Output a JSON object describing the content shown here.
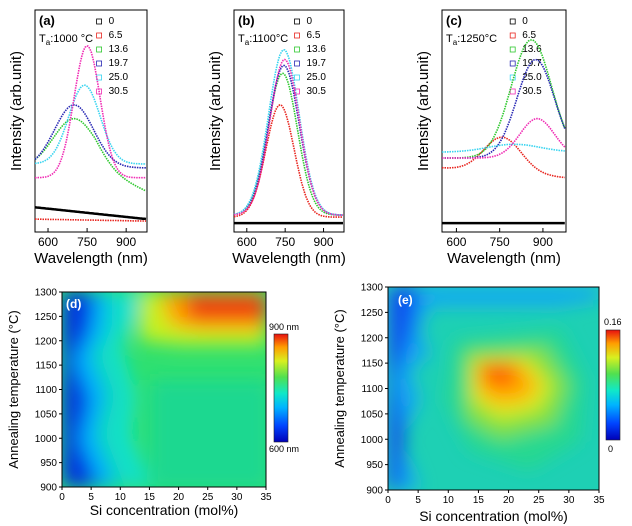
{
  "figure": {
    "panels_top": [
      {
        "letter": "(a)",
        "temp_prefix": "T",
        "temp_sub": "a",
        "temp_value": ":1000 °C"
      },
      {
        "letter": "(b)",
        "temp_prefix": "T",
        "temp_sub": "a",
        "temp_value": ":1100°C"
      },
      {
        "letter": "(c)",
        "temp_prefix": "T",
        "temp_sub": "a",
        "temp_value": ":1250°C"
      }
    ],
    "legend_values": [
      "0",
      "6.5",
      "13.6",
      "19.7",
      "25.0",
      "30.5"
    ],
    "legend_colors": [
      "#000000",
      "#e8251f",
      "#2ec82e",
      "#2828b4",
      "#38d4f0",
      "#f02cb4"
    ],
    "top_xlabel": "Wavelength (nm)",
    "top_ylabel": "Intensity (arb.unit)",
    "top_xticks": [
      "600",
      "750",
      "900"
    ],
    "map_d": {
      "letter": "(d)",
      "cbar_top": "900 nm",
      "cbar_bottom": "600 nm"
    },
    "map_e": {
      "letter": "(e)",
      "cbar_top": "0.16",
      "cbar_bottom": "0"
    },
    "map_xlabel": "Si concentration (mol%)",
    "map_ylabel": "Annealing temperature (°C)",
    "map_xticks": [
      "0",
      "5",
      "10",
      "15",
      "20",
      "25",
      "30",
      "35"
    ],
    "map_yticks": [
      "1300",
      "1250",
      "1200",
      "1150",
      "1100",
      "1050",
      "1000",
      "950",
      "900"
    ]
  },
  "chart_data": [
    {
      "type": "line",
      "panel": "(a)",
      "x_range": [
        550,
        980
      ],
      "series": [
        {
          "name": "0",
          "peak_nm": null,
          "relative_peak": 0.05
        },
        {
          "name": "6.5",
          "peak_nm": null,
          "relative_peak": 0.09
        },
        {
          "name": "13.6",
          "peak_nm": 700,
          "relative_peak": 0.55
        },
        {
          "name": "19.7",
          "peak_nm": 700,
          "relative_peak": 0.62
        },
        {
          "name": "25.0",
          "peak_nm": 740,
          "relative_peak": 0.72
        },
        {
          "name": "30.5",
          "peak_nm": 750,
          "relative_peak": 0.92
        }
      ]
    },
    {
      "type": "line",
      "panel": "(b)",
      "x_range": [
        550,
        980
      ],
      "series": [
        {
          "name": "0",
          "peak_nm": null,
          "relative_peak": 0.02
        },
        {
          "name": "6.5",
          "peak_nm": 730,
          "relative_peak": 0.62
        },
        {
          "name": "13.6",
          "peak_nm": 740,
          "relative_peak": 0.78
        },
        {
          "name": "19.7",
          "peak_nm": 745,
          "relative_peak": 0.82
        },
        {
          "name": "25.0",
          "peak_nm": 745,
          "relative_peak": 0.9
        },
        {
          "name": "30.5",
          "peak_nm": 745,
          "relative_peak": 0.85
        }
      ]
    },
    {
      "type": "line",
      "panel": "(c)",
      "x_range": [
        550,
        980
      ],
      "series": [
        {
          "name": "0",
          "peak_nm": null,
          "relative_peak": 0.02
        },
        {
          "name": "6.5",
          "peak_nm": 760,
          "relative_peak": 0.5
        },
        {
          "name": "13.6",
          "peak_nm": 860,
          "relative_peak": 0.95
        },
        {
          "name": "19.7",
          "peak_nm": 870,
          "relative_peak": 0.85
        },
        {
          "name": "25.0",
          "peak_nm": 800,
          "relative_peak": 0.42
        },
        {
          "name": "30.5",
          "peak_nm": 880,
          "relative_peak": 0.55
        }
      ]
    },
    {
      "type": "heatmap",
      "panel": "(d)",
      "x_range": [
        0,
        35
      ],
      "y_range": [
        900,
        1300
      ],
      "value_range": [
        600,
        900
      ]
    },
    {
      "type": "heatmap",
      "panel": "(e)",
      "x_range": [
        0,
        35
      ],
      "y_range": [
        900,
        1300
      ],
      "value_range": [
        0,
        0.16
      ]
    }
  ]
}
